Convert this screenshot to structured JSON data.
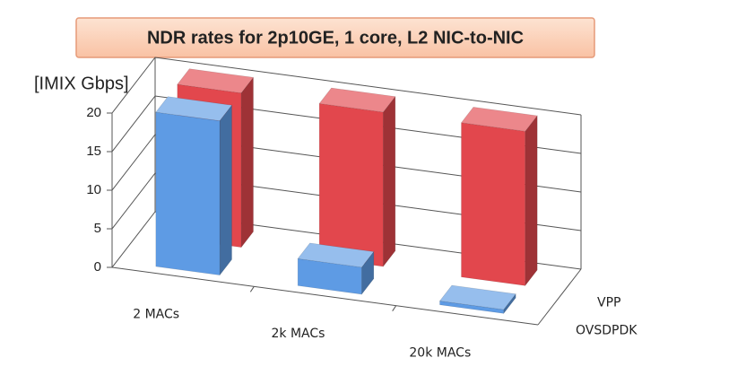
{
  "chart_data": {
    "type": "bar3d",
    "title": "NDR rates for 2p10GE, 1 core, L2 NIC-to-NIC",
    "y_label": "[IMIX Gbps]",
    "categories": [
      "2 MACs",
      "2k MACs",
      "20k MACs"
    ],
    "series": [
      {
        "name": "VPP",
        "color": "#e2474d",
        "values": [
          20,
          20,
          20
        ]
      },
      {
        "name": "OVSDPDK",
        "color": "#5e9be4",
        "values": [
          20,
          3.5,
          0.5
        ]
      }
    ],
    "ylim": [
      0,
      20
    ],
    "yticks": [
      0,
      5,
      10,
      15,
      20
    ],
    "grid": true
  }
}
